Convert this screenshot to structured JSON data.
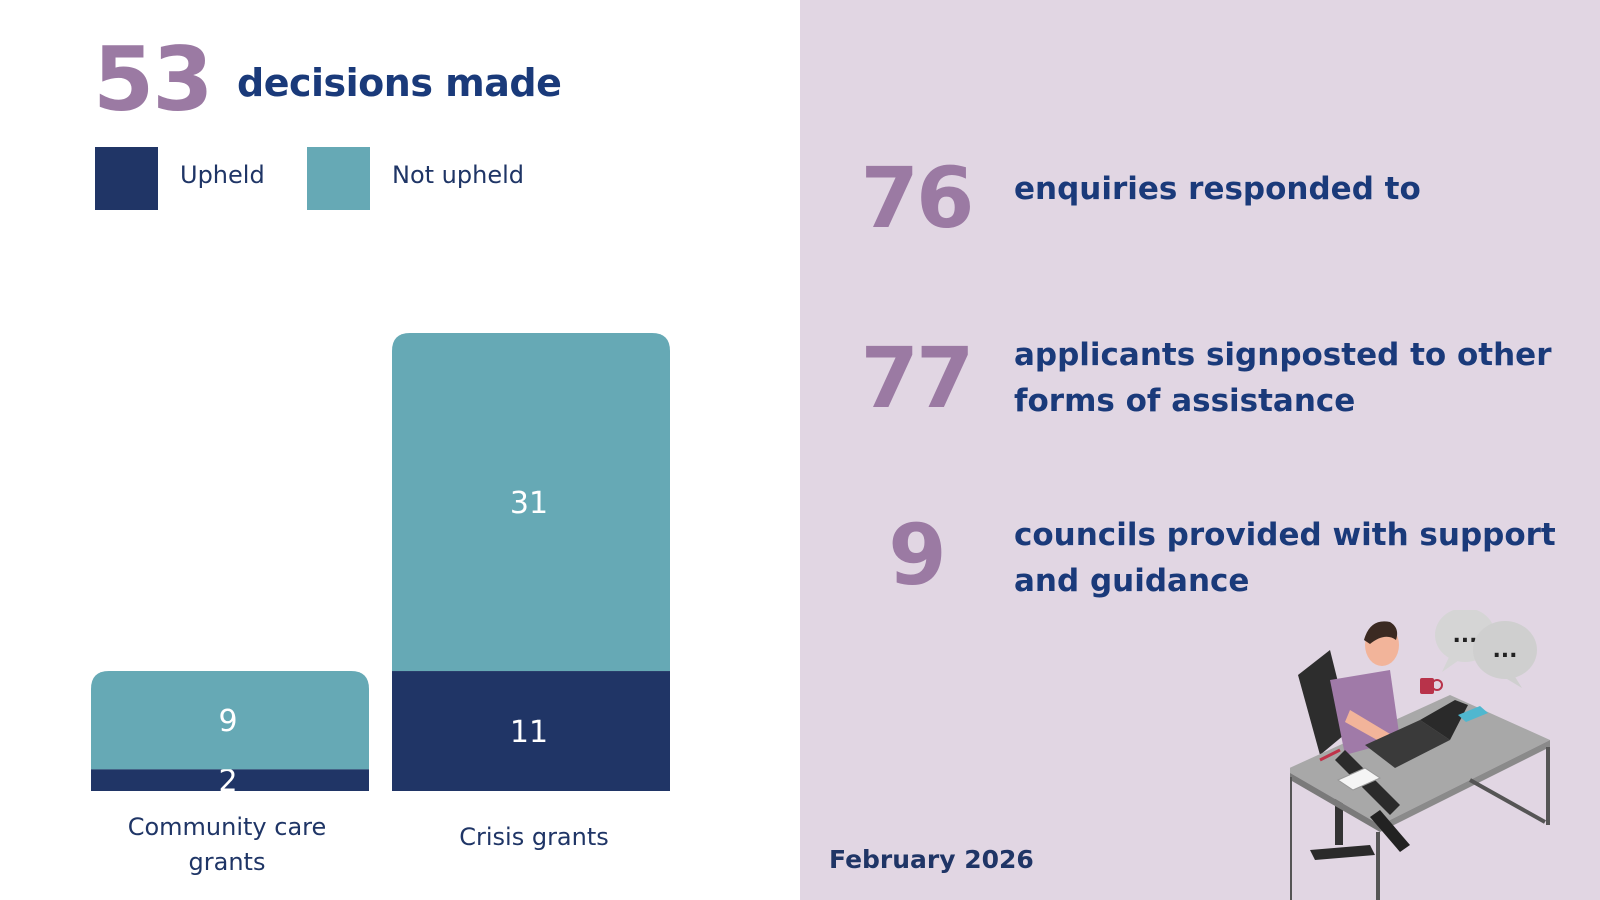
{
  "header": {
    "total": "53",
    "label": "decisions made"
  },
  "legend": {
    "upheld": "Upheld",
    "not_upheld": "Not upheld"
  },
  "colors": {
    "upheld": "#203566",
    "not_upheld": "#66a9b5",
    "accent_purple": "#9b7aa3",
    "navy_text": "#1a3a7a",
    "right_panel_bg": "#e1d6e3"
  },
  "chart_data": {
    "type": "bar",
    "stacked": true,
    "title": "53 decisions made",
    "categories": [
      "Community care grants",
      "Crisis grants"
    ],
    "category_lines": [
      [
        "Community care",
        "grants"
      ],
      [
        "Crisis grants"
      ]
    ],
    "series": [
      {
        "name": "Upheld",
        "values": [
          2,
          11
        ]
      },
      {
        "name": "Not upheld",
        "values": [
          9,
          31
        ]
      }
    ],
    "xlabel": "",
    "ylabel": "",
    "ylim": [
      0,
      42
    ],
    "grid": false,
    "legend": "top-left"
  },
  "stats": [
    {
      "number": "76",
      "text": "enquiries responded to"
    },
    {
      "number": "77",
      "text": "applicants signposted to other forms of assistance"
    },
    {
      "number": "9",
      "text": "councils provided with support and guidance"
    }
  ],
  "speech_bubbles": [
    "...",
    "..."
  ],
  "footer": {
    "date": "February 2026"
  }
}
